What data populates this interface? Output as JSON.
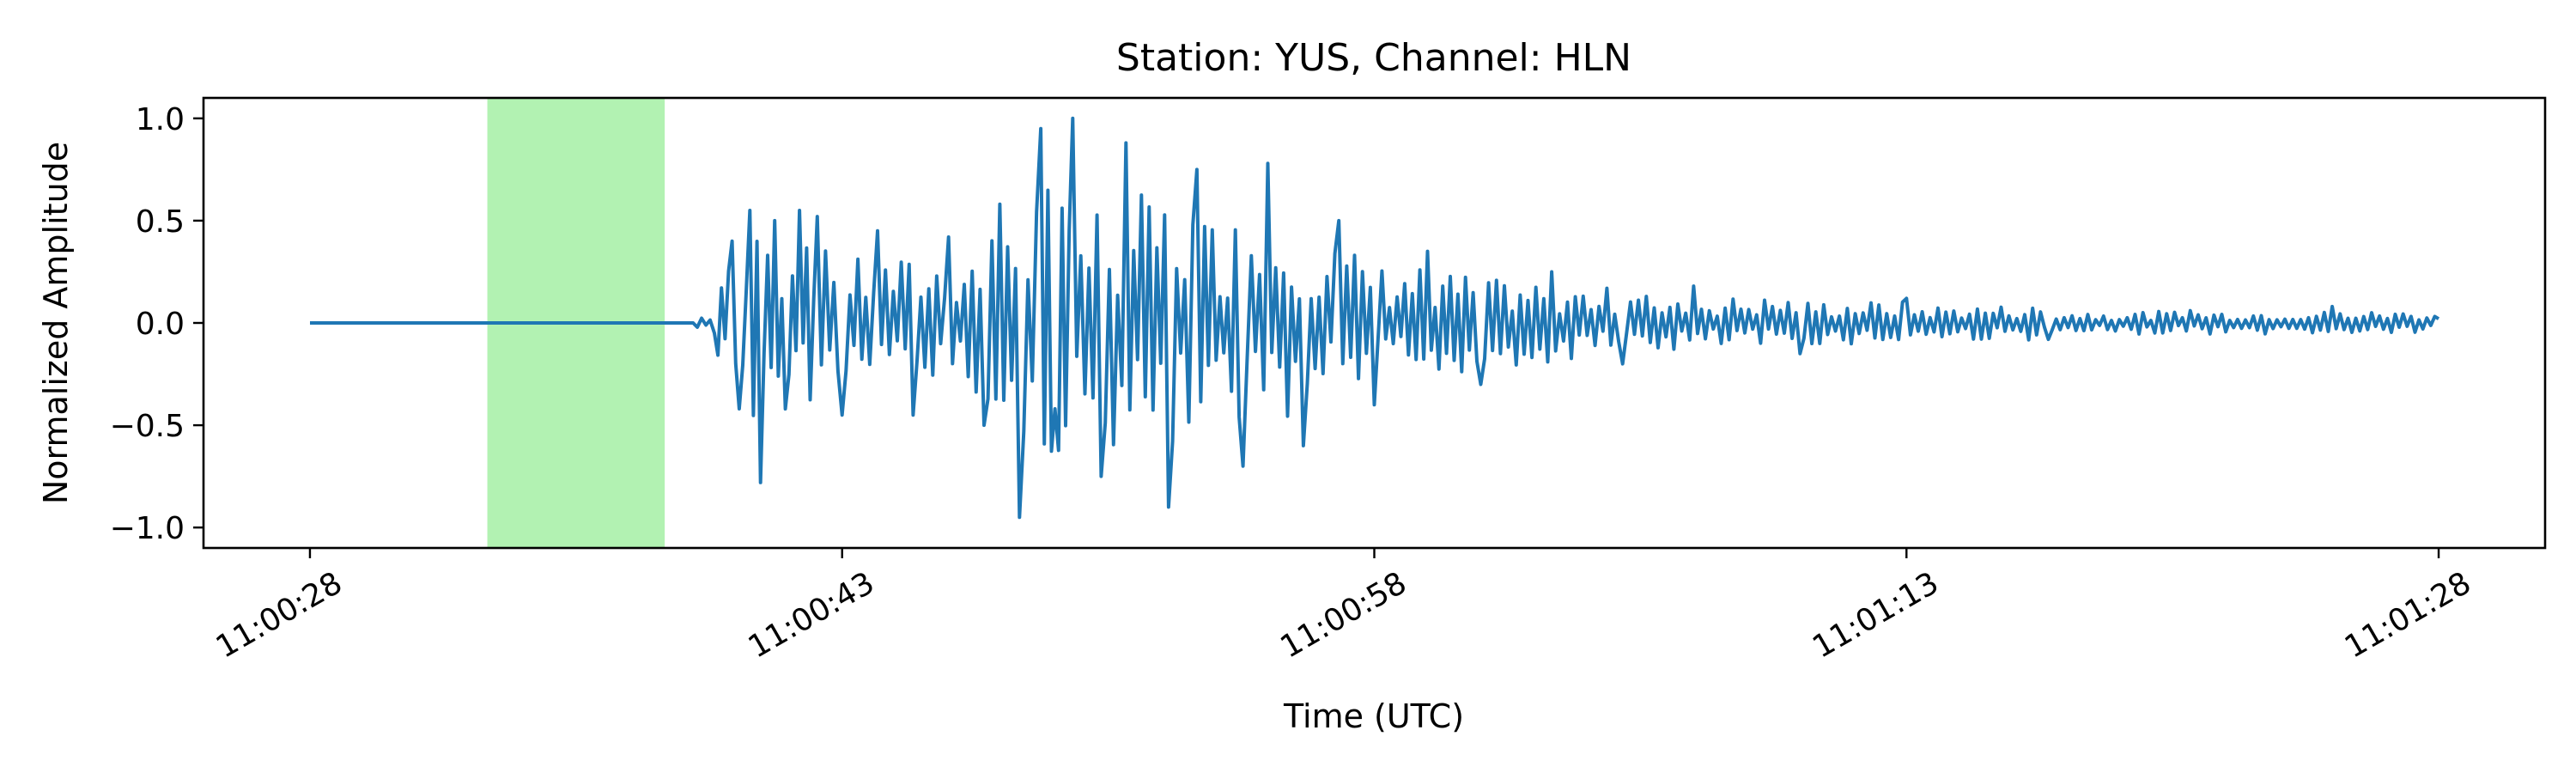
{
  "chart_data": {
    "type": "line",
    "title": "Station: YUS, Channel: HLN",
    "xlabel": "Time (UTC)",
    "ylabel": "Normalized Amplitude",
    "x_range": [
      "11:00:25",
      "11:01:31"
    ],
    "ylim": [
      -1.1,
      1.1
    ],
    "x_ticks": [
      "11:00:28",
      "11:00:43",
      "11:00:58",
      "11:01:13",
      "11:01:28"
    ],
    "y_ticks": [
      1.0,
      0.5,
      0.0,
      -0.5,
      -1.0
    ],
    "y_tick_labels": [
      "1.0",
      "0.5",
      "0.0",
      "−0.5",
      "−1.0"
    ],
    "grid": false,
    "line_color": "#1f77b4",
    "shaded_window": {
      "start": "11:00:33",
      "end": "11:00:38",
      "color": "#b2f2b2"
    },
    "series": [
      {
        "x": [
          "11:00:28",
          "11:00:38.8",
          "11:00:39.4",
          "11:00:39.9",
          "11:00:40.1",
          "11:00:40.4",
          "11:00:40.7",
          "11:00:41.1",
          "11:00:41.4",
          "11:00:41.8",
          "11:00:42.3",
          "11:00:43.0",
          "11:00:44.0",
          "11:00:45.0",
          "11:00:46.0",
          "11:00:47.0",
          "11:00:48.0",
          "11:00:48.6",
          "11:00:49.0",
          "11:00:49.5",
          "11:00:50.3",
          "11:00:51.0",
          "11:00:52.2",
          "11:00:53.0",
          "11:00:54.3",
          "11:00:55.0",
          "11:00:56.0",
          "11:00:57.0",
          "11:00:58.0",
          "11:00:59.5",
          "11:01:01.0",
          "11:01:03.0",
          "11:01:05.0",
          "11:01:07.0",
          "11:01:10.0",
          "11:01:13.0",
          "11:01:17.0",
          "11:01:21.0",
          "11:01:25.0",
          "11:01:28"
        ],
        "y": [
          0.0,
          0.0,
          -0.05,
          0.4,
          -0.42,
          0.55,
          -0.78,
          0.5,
          -0.42,
          0.55,
          0.52,
          -0.45,
          0.45,
          -0.45,
          0.42,
          -0.5,
          -0.95,
          0.95,
          -0.42,
          1.0,
          -0.75,
          0.88,
          -0.9,
          0.75,
          -0.7,
          0.78,
          -0.6,
          0.5,
          -0.4,
          0.35,
          -0.3,
          0.25,
          -0.2,
          0.18,
          -0.15,
          0.12,
          -0.08,
          0.06,
          0.08,
          0.02
        ]
      }
    ]
  }
}
